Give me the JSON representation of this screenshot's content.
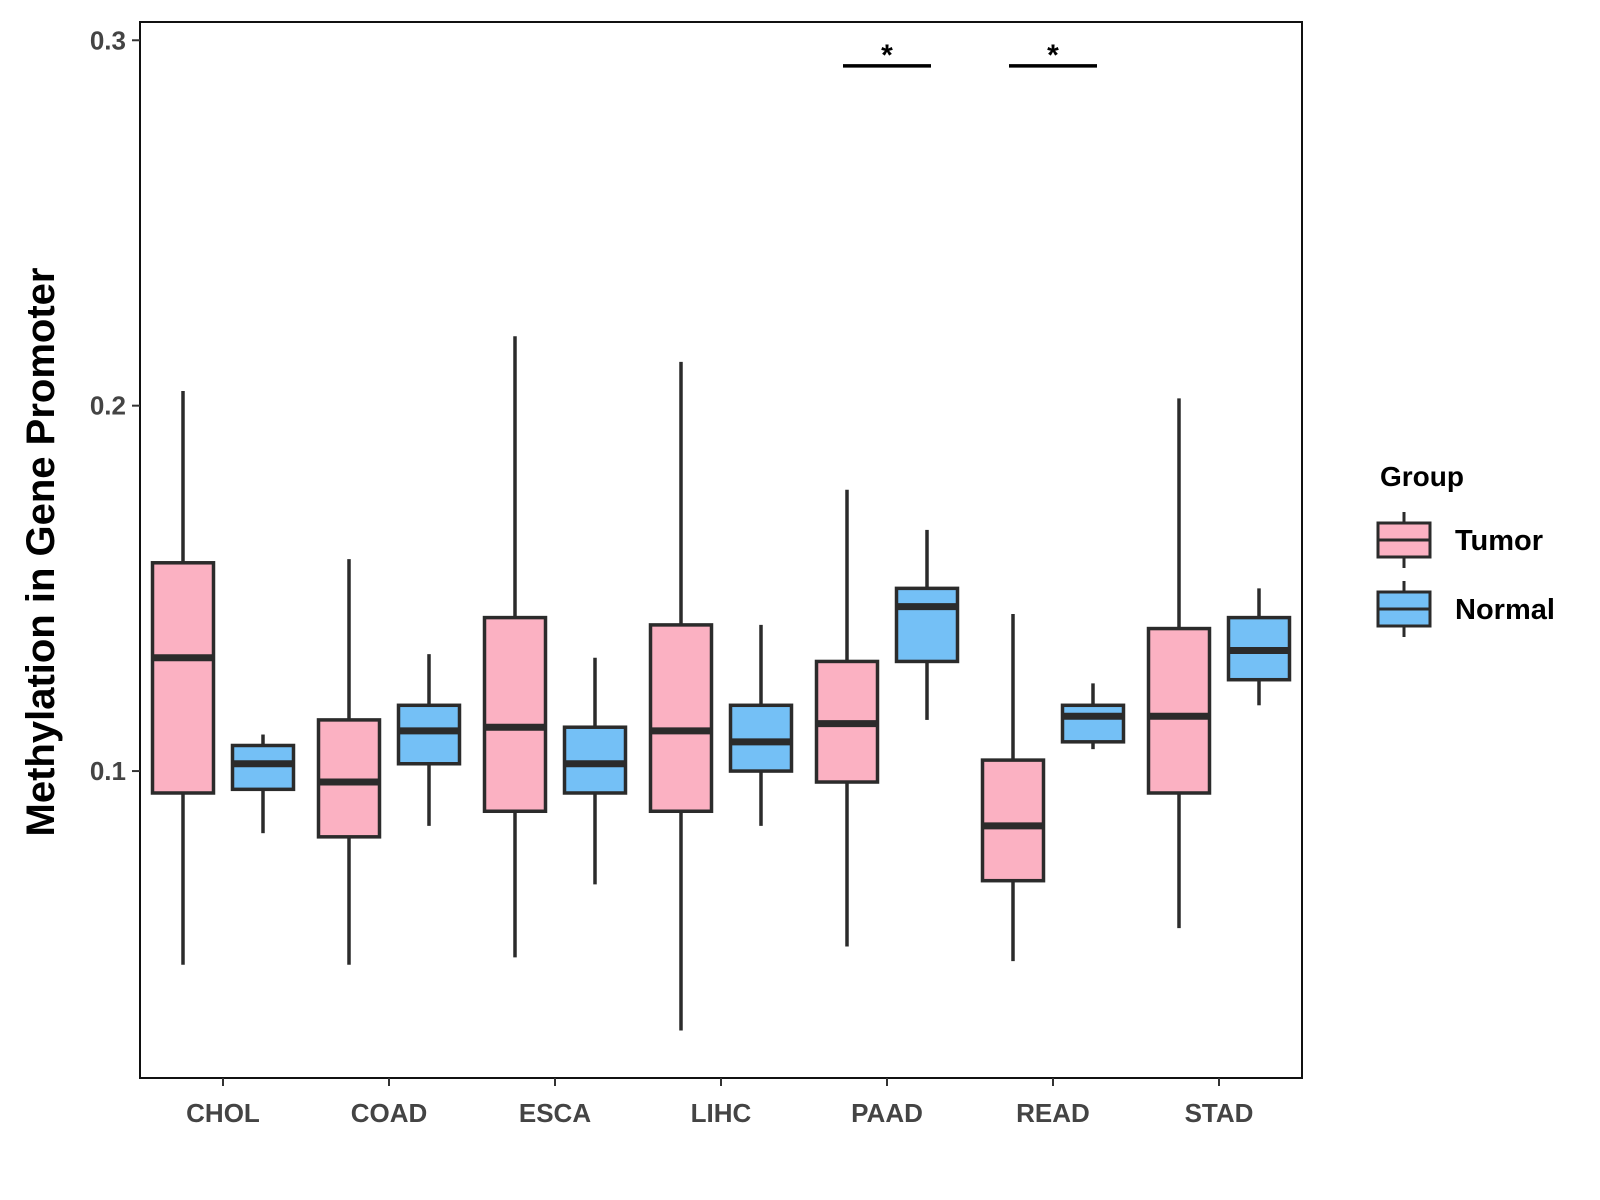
{
  "chart_data": {
    "type": "boxplot",
    "title": "",
    "xlabel": "",
    "ylabel": "Methylation in Gene Promoter",
    "ylim": [
      0.016,
      0.305
    ],
    "yticks": [
      0.1,
      0.2,
      0.3
    ],
    "ytick_labels": [
      "0.1",
      "0.2",
      "0.3"
    ],
    "categories": [
      "CHOL",
      "COAD",
      "ESCA",
      "LIHC",
      "PAAD",
      "READ",
      "STAD"
    ],
    "groups": [
      {
        "name": "Tumor",
        "color": "#FBB1C2"
      },
      {
        "name": "Normal",
        "color": "#74C0F6"
      }
    ],
    "boxes": [
      {
        "category": "CHOL",
        "group": "Tumor",
        "min": 0.047,
        "q1": 0.094,
        "median": 0.131,
        "q3": 0.157,
        "max": 0.204
      },
      {
        "category": "CHOL",
        "group": "Normal",
        "min": 0.083,
        "q1": 0.095,
        "median": 0.102,
        "q3": 0.107,
        "max": 0.11
      },
      {
        "category": "COAD",
        "group": "Tumor",
        "min": 0.047,
        "q1": 0.082,
        "median": 0.097,
        "q3": 0.114,
        "max": 0.158
      },
      {
        "category": "COAD",
        "group": "Normal",
        "min": 0.085,
        "q1": 0.102,
        "median": 0.111,
        "q3": 0.118,
        "max": 0.132
      },
      {
        "category": "ESCA",
        "group": "Tumor",
        "min": 0.049,
        "q1": 0.089,
        "median": 0.112,
        "q3": 0.142,
        "max": 0.219
      },
      {
        "category": "ESCA",
        "group": "Normal",
        "min": 0.069,
        "q1": 0.094,
        "median": 0.102,
        "q3": 0.112,
        "max": 0.131
      },
      {
        "category": "LIHC",
        "group": "Tumor",
        "min": 0.029,
        "q1": 0.089,
        "median": 0.111,
        "q3": 0.14,
        "max": 0.212
      },
      {
        "category": "LIHC",
        "group": "Normal",
        "min": 0.085,
        "q1": 0.1,
        "median": 0.108,
        "q3": 0.118,
        "max": 0.14
      },
      {
        "category": "PAAD",
        "group": "Tumor",
        "min": 0.052,
        "q1": 0.097,
        "median": 0.113,
        "q3": 0.13,
        "max": 0.177
      },
      {
        "category": "PAAD",
        "group": "Normal",
        "min": 0.114,
        "q1": 0.13,
        "median": 0.145,
        "q3": 0.15,
        "max": 0.166
      },
      {
        "category": "READ",
        "group": "Tumor",
        "min": 0.048,
        "q1": 0.07,
        "median": 0.085,
        "q3": 0.103,
        "max": 0.143
      },
      {
        "category": "READ",
        "group": "Normal",
        "min": 0.106,
        "q1": 0.108,
        "median": 0.115,
        "q3": 0.118,
        "max": 0.124
      },
      {
        "category": "STAD",
        "group": "Tumor",
        "min": 0.057,
        "q1": 0.094,
        "median": 0.115,
        "q3": 0.139,
        "max": 0.202
      },
      {
        "category": "STAD",
        "group": "Normal",
        "min": 0.118,
        "q1": 0.125,
        "median": 0.133,
        "q3": 0.142,
        "max": 0.15
      }
    ],
    "annotations": [
      {
        "category": "PAAD",
        "text": "*",
        "y": 0.293
      },
      {
        "category": "READ",
        "text": "*",
        "y": 0.293
      }
    ],
    "legend": {
      "title": "Group",
      "position": "right",
      "entries": [
        "Tumor",
        "Normal"
      ]
    },
    "grid": false
  }
}
